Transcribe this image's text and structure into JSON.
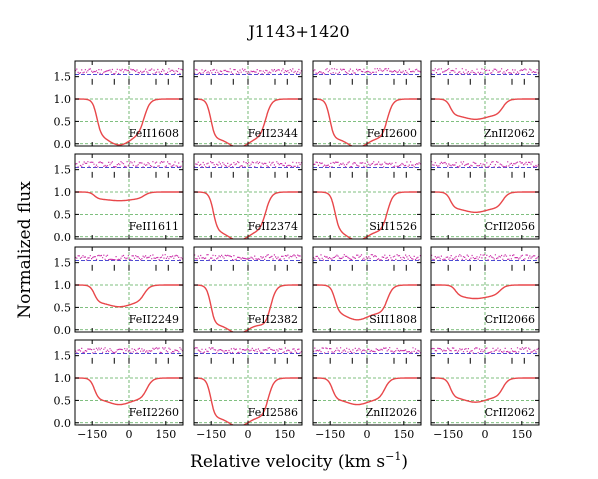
{
  "chart_data": {
    "type": "line",
    "title": "J1143+1420",
    "xlabel": "Relative velocity (km s$^{-1}$)",
    "xlabel_main": "Relative velocity (km s",
    "xlabel_sup": "−1",
    "xlabel_close": ")",
    "ylabel": "Normalized flux",
    "xlim": [
      -220,
      220
    ],
    "ylim": [
      -0.05,
      1.85
    ],
    "xticks": [
      -150,
      0,
      150
    ],
    "xtick_labels": [
      "−150",
      "0",
      "150"
    ],
    "yticks": [
      0.0,
      0.5,
      1.0,
      1.5
    ],
    "ytick_labels": [
      "0.0",
      "0.5",
      "1.0",
      "1.5"
    ],
    "grid": "dashed green at y=0.0, 0.5, 1.0 and x=0; dashed blue reference near y=1.55",
    "component_velocities": [
      -150,
      -60,
      0,
      110,
      160
    ],
    "colors": {
      "data": "#000000",
      "masked": "#888888",
      "model": "#e8474a",
      "grid": "#55aa55",
      "ref": "#3333cc",
      "residual": "#cc33aa"
    },
    "panels": [
      {
        "label": "FeII1608",
        "depth": 0.95,
        "left": -130,
        "right": 60,
        "row": 0,
        "col": 0
      },
      {
        "label": "FeII2344",
        "depth": 1.0,
        "left": -150,
        "right": 70,
        "row": 0,
        "col": 1
      },
      {
        "label": "FeII2600",
        "depth": 1.0,
        "left": -150,
        "right": 80,
        "row": 0,
        "col": 2
      },
      {
        "label": "ZnII2062",
        "depth": 0.42,
        "left": -140,
        "right": 70,
        "row": 0,
        "col": 3
      },
      {
        "label": "FeII1611",
        "depth": 0.18,
        "left": -140,
        "right": 60,
        "row": 1,
        "col": 0
      },
      {
        "label": "FeII2374",
        "depth": 1.0,
        "left": -140,
        "right": 70,
        "row": 1,
        "col": 1
      },
      {
        "label": "SiII1526",
        "depth": 1.0,
        "left": -130,
        "right": 80,
        "row": 1,
        "col": 2
      },
      {
        "label": "CrII2056",
        "depth": 0.42,
        "left": -140,
        "right": 70,
        "row": 1,
        "col": 3
      },
      {
        "label": "FeII2249",
        "depth": 0.45,
        "left": -140,
        "right": 60,
        "row": 2,
        "col": 0
      },
      {
        "label": "FeII2382",
        "depth": 1.0,
        "left": -150,
        "right": 90,
        "row": 2,
        "col": 1
      },
      {
        "label": "SiII1808",
        "depth": 0.72,
        "left": -130,
        "right": 80,
        "row": 2,
        "col": 2
      },
      {
        "label": "CrII2066",
        "depth": 0.28,
        "left": -120,
        "right": 60,
        "row": 2,
        "col": 3
      },
      {
        "label": "FeII2260",
        "depth": 0.55,
        "left": -140,
        "right": 70,
        "row": 3,
        "col": 0
      },
      {
        "label": "FeII2586",
        "depth": 1.0,
        "left": -150,
        "right": 80,
        "row": 3,
        "col": 1
      },
      {
        "label": "ZnII2026",
        "depth": 0.55,
        "left": -140,
        "right": 70,
        "row": 3,
        "col": 2
      },
      {
        "label": "CrII2062",
        "depth": 0.5,
        "left": -140,
        "right": 70,
        "row": 3,
        "col": 3
      }
    ]
  }
}
